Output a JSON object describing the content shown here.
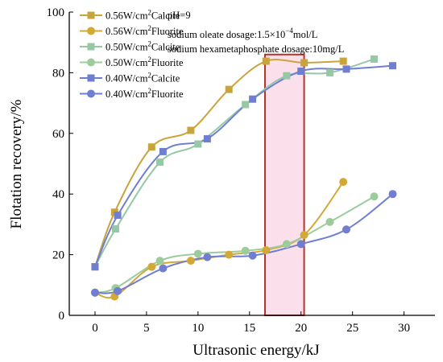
{
  "chart_data": {
    "type": "line",
    "xlabel": "Ultrasonic energy/kJ",
    "ylabel": "Flotation recovery/%",
    "xlim": [
      -2.5,
      33
    ],
    "ylim": [
      0,
      100
    ],
    "xticks": [
      "0",
      "5",
      "10",
      "15",
      "20",
      "25",
      "30"
    ],
    "yticks": [
      "0",
      "20",
      "40",
      "60",
      "80",
      "100"
    ],
    "grid": false,
    "legend_position": "top-left",
    "annotations": {
      "ph": "pH=9",
      "oleate_prefix": "sodium oleate dosage:1.5×10",
      "oleate_exp": "−4",
      "oleate_suffix": "mol/L",
      "hexa": "sodium hexametaphosphate dosage:10mg/L"
    },
    "highlight_box": {
      "x_range": [
        16.5,
        20.3
      ],
      "y_range": [
        0,
        86
      ],
      "color": "#b8322a",
      "fill": "#f9d5e5"
    },
    "series": [
      {
        "name": "0.56W/cm²Calcite",
        "legend_prefix": "0.56W/cm",
        "legend_mineral": "Calcite",
        "color": "#c9a43c",
        "marker": "square",
        "x": [
          0,
          1.9,
          5.5,
          9.3,
          13.0,
          16.6,
          20.3,
          24.1
        ],
        "y": [
          16,
          34,
          55.5,
          61,
          74.5,
          83.8,
          83.3,
          83.8
        ]
      },
      {
        "name": "0.56W/cm²Fluorite",
        "legend_prefix": "0.56W/cm",
        "legend_mineral": "Fluorite",
        "color": "#d2a936",
        "marker": "circle",
        "x": [
          0,
          1.9,
          5.5,
          9.3,
          13.0,
          16.6,
          20.3,
          24.1
        ],
        "y": [
          7.5,
          6.2,
          16,
          18,
          20,
          21.5,
          26.5,
          44
        ]
      },
      {
        "name": "0.50W/cm²Calcite",
        "legend_prefix": "0.50W/cm",
        "legend_mineral": "Calcite",
        "color": "#97c8a5",
        "marker": "square",
        "x": [
          0,
          2.0,
          6.3,
          10.0,
          14.6,
          18.6,
          22.8,
          27.1
        ],
        "y": [
          16,
          28.5,
          50.5,
          56.5,
          69.5,
          79,
          80,
          84.5
        ]
      },
      {
        "name": "0.50W/cm²Fluorite",
        "legend_prefix": "0.50W/cm",
        "legend_mineral": "Fluorite",
        "color": "#9ccc9c",
        "marker": "circle",
        "x": [
          0,
          2.0,
          6.3,
          10.0,
          14.6,
          18.6,
          22.8,
          27.1
        ],
        "y": [
          7.5,
          9,
          18,
          20.3,
          21.3,
          23.5,
          30.8,
          39.2
        ]
      },
      {
        "name": "0.40W/cm²Calcite",
        "legend_prefix": "0.40W/cm",
        "legend_mineral": "Calcite",
        "color": "#6f7ed1",
        "marker": "square",
        "x": [
          0,
          2.2,
          6.6,
          10.9,
          15.3,
          20.0,
          24.4,
          28.9
        ],
        "y": [
          16,
          33,
          54,
          58.2,
          71.3,
          80.5,
          81.2,
          82.3
        ]
      },
      {
        "name": "0.40W/cm²Fluorite",
        "legend_prefix": "0.40W/cm",
        "legend_mineral": "Fluorite",
        "color": "#6f7ed1",
        "marker": "circle",
        "x": [
          0,
          2.2,
          6.6,
          10.9,
          15.3,
          20.0,
          24.4,
          28.9
        ],
        "y": [
          7.5,
          8,
          15.5,
          19.2,
          19.7,
          23.5,
          28.3,
          40
        ]
      }
    ]
  }
}
